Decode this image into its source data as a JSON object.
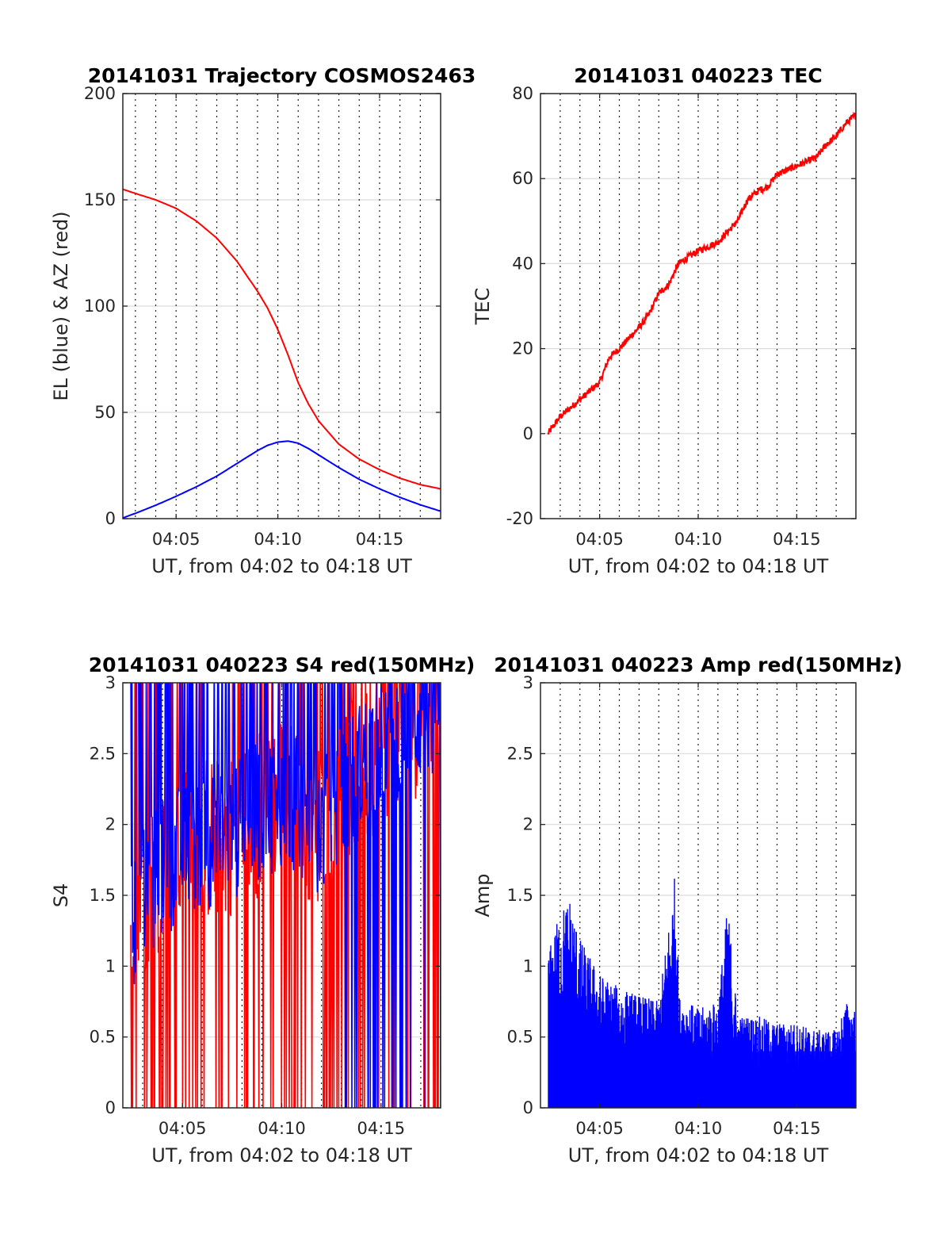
{
  "chart_data": [
    {
      "type": "line",
      "title": "20141031 Trajectory COSMOS2463",
      "xlabel": "UT, from 04:02 to 04:18 UT",
      "ylabel": "EL (blue) & AZ (red)",
      "xlim": [
        "04:02:23",
        "04:18:00"
      ],
      "ylim": [
        0,
        200
      ],
      "xticks": [
        "04:05",
        "04:10",
        "04:15"
      ],
      "yticks": [
        0,
        50,
        100,
        150,
        200
      ],
      "grid": true,
      "minor_x_grid_minutes": true,
      "x_minutes": [
        2.38,
        3,
        4,
        5,
        6,
        7,
        8,
        9,
        9.5,
        10,
        10.5,
        11,
        11.5,
        12,
        13,
        14,
        15,
        16,
        17,
        18
      ],
      "series": [
        {
          "color": "#ff0000",
          "values": [
            155,
            153,
            150,
            146,
            140,
            132,
            121,
            107,
            99,
            89,
            77,
            64,
            54,
            46,
            35,
            28,
            23,
            19,
            16,
            14
          ]
        },
        {
          "color": "#0000ff",
          "values": [
            0.3,
            2.5,
            6.3,
            10.5,
            15,
            20,
            26,
            32,
            34.5,
            36,
            36.5,
            35.5,
            33,
            30,
            24,
            18.5,
            14,
            10,
            6.5,
            3.5
          ]
        }
      ]
    },
    {
      "type": "line",
      "title": "20141031 040223 TEC",
      "xlabel": "UT, from 04:02 to 04:18 UT",
      "ylabel": "TEC",
      "xlim": [
        "04:02:00",
        "04:18:00"
      ],
      "ylim": [
        -20,
        80
      ],
      "xticks": [
        "04:05",
        "04:10",
        "04:15"
      ],
      "yticks": [
        -20,
        0,
        20,
        40,
        60,
        80
      ],
      "grid": true,
      "minor_x_grid_minutes": true,
      "x_minutes": [
        2.38,
        3,
        4,
        5,
        5.5,
        6,
        7,
        7.5,
        8,
        8.5,
        9,
        10,
        11,
        12,
        12.5,
        13,
        13.5,
        14,
        15,
        16,
        16.5,
        17,
        17.5,
        18
      ],
      "series": [
        {
          "color": "#ff0000",
          "noise": 0.8,
          "values": [
            0,
            4,
            8,
            12,
            18,
            20,
            25,
            28,
            33,
            35,
            40,
            43,
            45,
            50,
            55,
            57,
            58,
            61,
            63,
            65,
            68,
            70,
            73,
            75
          ]
        }
      ]
    },
    {
      "type": "line",
      "title": "20141031 040223 S4 red(150MHz)",
      "xlabel": "UT, from 04:02 to 04:18 UT",
      "ylabel": "S4",
      "xlim": [
        "04:02:00",
        "04:18:00"
      ],
      "ylim": [
        0,
        3
      ],
      "xticks": [
        "04:05",
        "04:10",
        "04:15"
      ],
      "yticks": [
        0,
        0.5,
        1,
        1.5,
        2,
        2.5,
        3
      ],
      "grid": true,
      "minor_x_grid_minutes": true,
      "x_minutes": [
        2.4,
        3,
        4,
        5,
        6,
        7,
        8,
        9,
        10,
        11,
        12,
        13,
        14,
        15,
        16,
        17,
        18
      ],
      "series": [
        {
          "color": "#ff0000",
          "values": [
            1.3,
            1.5,
            1.7,
            1.8,
            1.9,
            1.9,
            2.0,
            2.1,
            2.2,
            2.1,
            2.0,
            2.2,
            2.4,
            2.6,
            2.7,
            2.8,
            2.9
          ]
        },
        {
          "color": "#0000ff",
          "values": [
            1.3,
            1.5,
            1.7,
            1.8,
            1.9,
            1.9,
            2.0,
            2.1,
            2.2,
            2.1,
            2.0,
            2.2,
            2.4,
            2.6,
            2.7,
            2.8,
            2.9
          ]
        }
      ]
    },
    {
      "type": "bar",
      "title": "20141031 040223 Amp red(150MHz)",
      "xlabel": "UT, from 04:02 to 04:18 UT",
      "ylabel": "Amp",
      "xlim": [
        "04:02:00",
        "04:18:00"
      ],
      "ylim": [
        0,
        3
      ],
      "xticks": [
        "04:05",
        "04:10",
        "04:15"
      ],
      "yticks": [
        0,
        0.5,
        1,
        1.5,
        2,
        2.5,
        3
      ],
      "grid": true,
      "minor_x_grid_minutes": true,
      "x_minutes": [
        2.4,
        3,
        3.5,
        4,
        5,
        6,
        7,
        8,
        8.9,
        9,
        10,
        11,
        11.5,
        12,
        13,
        14,
        15,
        16,
        17,
        17.5,
        18
      ],
      "series": [
        {
          "color": "#0000ff",
          "values": [
            1.1,
            1.4,
            1.5,
            1.2,
            0.95,
            0.85,
            0.8,
            0.75,
            1.75,
            0.8,
            0.7,
            0.75,
            1.45,
            0.65,
            0.65,
            0.6,
            0.6,
            0.55,
            0.55,
            0.75,
            0.7
          ]
        }
      ]
    }
  ]
}
